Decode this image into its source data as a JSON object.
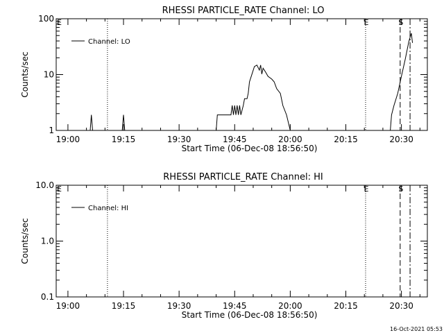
{
  "footer_timestamp": "16-Oct-2021 05:53",
  "chart_data": [
    {
      "type": "line",
      "title": "RHESSI PARTICLE_RATE Channel: LO",
      "xlabel": "Start Time (06-Dec-08 18:56:50)",
      "ylabel": "Counts/sec",
      "yscale": "log",
      "ylim": [
        1,
        100
      ],
      "xlim": [
        "18:56:50",
        "20:37:00"
      ],
      "yticks": [
        "1",
        "10",
        "100"
      ],
      "xticks": [
        "19:00",
        "19:15",
        "19:30",
        "19:45",
        "20:00",
        "20:15",
        "20:30"
      ],
      "legend": {
        "position": "top-left",
        "entries": [
          "Channel: LO"
        ]
      },
      "markers": [
        {
          "label": "E",
          "time": "18:56:50",
          "style": "edge"
        },
        {
          "label": "",
          "time": "19:10:40",
          "style": "dotted"
        },
        {
          "label": "E",
          "time": "20:20:20",
          "style": "dotted"
        },
        {
          "label": "S",
          "time": "20:29:40",
          "style": "dashed"
        },
        {
          "label": "",
          "time": "20:32:20",
          "style": "dashdot"
        }
      ],
      "series": [
        {
          "name": "Channel: LO",
          "points": [
            [
              "19:06:00",
              1
            ],
            [
              "19:06:20",
              1.9
            ],
            [
              "19:06:40",
              1
            ],
            [
              "19:14:40",
              1
            ],
            [
              "19:15:00",
              1.9
            ],
            [
              "19:15:20",
              1
            ],
            [
              "19:40:00",
              1
            ],
            [
              "19:40:20",
              1.9
            ],
            [
              "19:43:00",
              1.9
            ],
            [
              "19:44:00",
              1.9
            ],
            [
              "19:44:20",
              2.8
            ],
            [
              "19:44:40",
              1.9
            ],
            [
              "19:45:00",
              2.8
            ],
            [
              "19:45:20",
              1.9
            ],
            [
              "19:45:40",
              2.8
            ],
            [
              "19:46:00",
              1.9
            ],
            [
              "19:46:20",
              2.8
            ],
            [
              "19:46:40",
              1.9
            ],
            [
              "19:47:20",
              2.8
            ],
            [
              "19:47:40",
              3.7
            ],
            [
              "19:48:20",
              3.7
            ],
            [
              "19:48:40",
              4.6
            ],
            [
              "19:49:00",
              7.4
            ],
            [
              "19:49:40",
              10.2
            ],
            [
              "19:50:20",
              13.9
            ],
            [
              "19:51:00",
              14.8
            ],
            [
              "19:51:40",
              12.0
            ],
            [
              "19:52:00",
              14.8
            ],
            [
              "19:52:20",
              10.2
            ],
            [
              "19:52:40",
              13.0
            ],
            [
              "19:53:20",
              11.1
            ],
            [
              "19:54:00",
              9.3
            ],
            [
              "19:55:00",
              8.3
            ],
            [
              "19:55:40",
              7.4
            ],
            [
              "19:56:20",
              5.6
            ],
            [
              "19:57:20",
              4.6
            ],
            [
              "19:58:00",
              2.8
            ],
            [
              "19:59:00",
              1.9
            ],
            [
              "20:00:00",
              1
            ],
            [
              "20:27:00",
              1
            ],
            [
              "20:27:20",
              1.9
            ],
            [
              "20:28:00",
              2.8
            ],
            [
              "20:29:00",
              4.6
            ],
            [
              "20:30:00",
              9.3
            ],
            [
              "20:31:00",
              18.5
            ],
            [
              "20:32:00",
              39.0
            ],
            [
              "20:32:40",
              55.0
            ],
            [
              "20:33:00",
              37.0
            ]
          ]
        }
      ]
    },
    {
      "type": "line",
      "title": "RHESSI PARTICLE_RATE Channel: HI",
      "xlabel": "Start Time (06-Dec-08 18:56:50)",
      "ylabel": "Counts/sec",
      "yscale": "log",
      "ylim": [
        0.1,
        10
      ],
      "xlim": [
        "18:56:50",
        "20:37:00"
      ],
      "yticks": [
        "0.1",
        "1.0",
        "10.0"
      ],
      "xticks": [
        "19:00",
        "19:15",
        "19:30",
        "19:45",
        "20:00",
        "20:15",
        "20:30"
      ],
      "legend": {
        "position": "top-left",
        "entries": [
          "Channel: HI"
        ]
      },
      "markers": [
        {
          "label": "E",
          "time": "18:56:50",
          "style": "edge"
        },
        {
          "label": "",
          "time": "19:10:40",
          "style": "dotted"
        },
        {
          "label": "E",
          "time": "20:20:20",
          "style": "dotted"
        },
        {
          "label": "S",
          "time": "20:29:40",
          "style": "dashed"
        },
        {
          "label": "",
          "time": "20:32:20",
          "style": "dashdot"
        }
      ],
      "series": [
        {
          "name": "Channel: HI",
          "points": []
        }
      ]
    }
  ]
}
